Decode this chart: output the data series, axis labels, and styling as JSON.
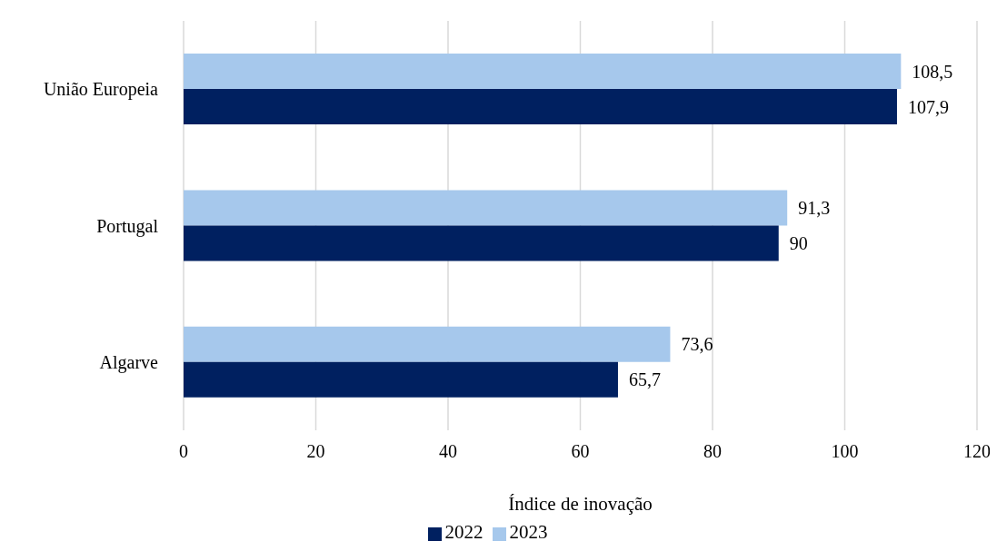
{
  "chart_data": {
    "type": "bar",
    "orientation": "horizontal",
    "categories": [
      "União Europeia",
      "Portugal",
      "Algarve"
    ],
    "series": [
      {
        "name": "2023",
        "color": "#a6c8ec",
        "values": [
          108.5,
          91.3,
          73.6
        ],
        "value_labels": [
          "108,5",
          "91,3",
          "73,6"
        ]
      },
      {
        "name": "2022",
        "color": "#002060",
        "values": [
          107.9,
          90,
          65.7
        ],
        "value_labels": [
          "107,9",
          "90",
          "65,7"
        ]
      }
    ],
    "xlabel": "Índice de inovação",
    "xlim": [
      0,
      120
    ],
    "xticks": [
      0,
      20,
      40,
      60,
      80,
      100,
      120
    ],
    "grid": "x",
    "legend": "bottom"
  }
}
